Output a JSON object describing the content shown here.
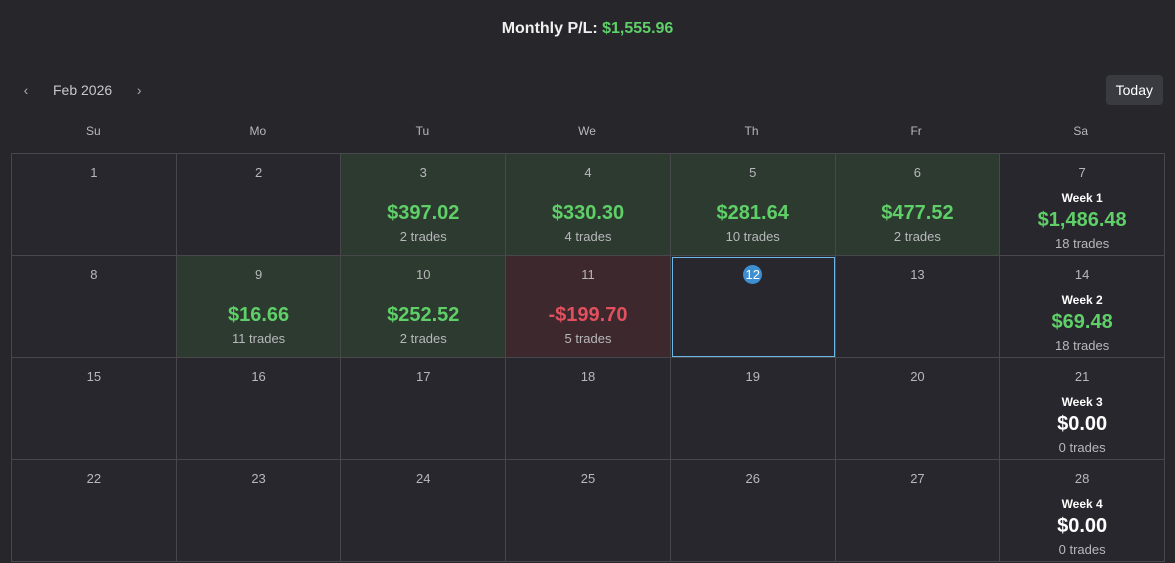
{
  "header": {
    "label": "Monthly P/L:",
    "value": "$1,555.96",
    "value_color": "#5fd068"
  },
  "nav": {
    "month": "Feb 2026",
    "today": "Today"
  },
  "weekdays": [
    "Su",
    "Mo",
    "Tu",
    "We",
    "Th",
    "Fr",
    "Sa"
  ],
  "weeks": [
    {
      "days": [
        {
          "day": "1"
        },
        {
          "day": "2"
        },
        {
          "day": "3",
          "pnl": "$397.02",
          "trades": "2 trades",
          "bg": "#2c3a2f",
          "fg": "#5fd068"
        },
        {
          "day": "4",
          "pnl": "$330.30",
          "trades": "4 trades",
          "bg": "#2c3a2f",
          "fg": "#5fd068"
        },
        {
          "day": "5",
          "pnl": "$281.64",
          "trades": "10 trades",
          "bg": "#2c3a2f",
          "fg": "#5fd068"
        },
        {
          "day": "6",
          "pnl": "$477.52",
          "trades": "2 trades",
          "bg": "#2c3a2f",
          "fg": "#5fd068"
        },
        {
          "day": "7",
          "week": "Week 1",
          "pnl": "$1,486.48",
          "trades": "18 trades",
          "fg": "#5fd068"
        }
      ]
    },
    {
      "days": [
        {
          "day": "8"
        },
        {
          "day": "9",
          "pnl": "$16.66",
          "trades": "11 trades",
          "bg": "#2c3a2f",
          "fg": "#5fd068"
        },
        {
          "day": "10",
          "pnl": "$252.52",
          "trades": "2 trades",
          "bg": "#2c3a2f",
          "fg": "#5fd068"
        },
        {
          "day": "11",
          "pnl": "-$199.70",
          "trades": "5 trades",
          "bg": "#3d282d",
          "fg": "#e0505e"
        },
        {
          "day": "12",
          "today": true
        },
        {
          "day": "13"
        },
        {
          "day": "14",
          "week": "Week 2",
          "pnl": "$69.48",
          "trades": "18 trades",
          "fg": "#5fd068"
        }
      ]
    },
    {
      "days": [
        {
          "day": "15"
        },
        {
          "day": "16"
        },
        {
          "day": "17"
        },
        {
          "day": "18"
        },
        {
          "day": "19"
        },
        {
          "day": "20"
        },
        {
          "day": "21",
          "week": "Week 3",
          "pnl": "$0.00",
          "trades": "0 trades",
          "fg": "#ffffff"
        }
      ]
    },
    {
      "days": [
        {
          "day": "22"
        },
        {
          "day": "23"
        },
        {
          "day": "24"
        },
        {
          "day": "25"
        },
        {
          "day": "26"
        },
        {
          "day": "27"
        },
        {
          "day": "28",
          "week": "Week 4",
          "pnl": "$0.00",
          "trades": "0 trades",
          "fg": "#ffffff"
        }
      ]
    }
  ]
}
